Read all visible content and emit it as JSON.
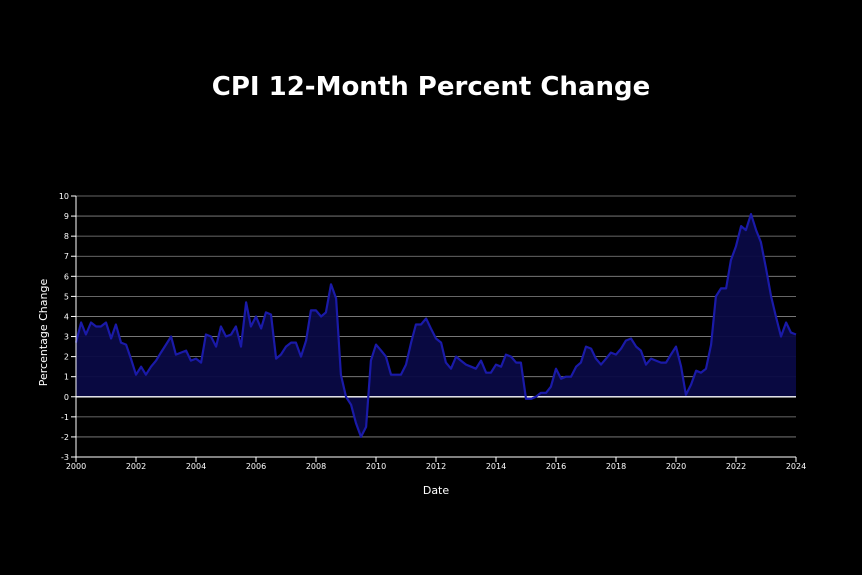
{
  "chart_data": {
    "type": "area",
    "title": "CPI 12-Month Percent Change",
    "xlabel": "Date",
    "ylabel": "Percentage Change",
    "xlim": [
      2000,
      2024
    ],
    "ylim": [
      -3,
      10
    ],
    "x_ticks": [
      "2000",
      "2002",
      "2004",
      "2006",
      "2008",
      "2010",
      "2012",
      "2014",
      "2016",
      "2018",
      "2020",
      "2022",
      "2024"
    ],
    "y_ticks": [
      "-3",
      "-2",
      "-1",
      "0",
      "1",
      "2",
      "3",
      "4",
      "5",
      "6",
      "7",
      "8",
      "9",
      "10"
    ],
    "grid": true,
    "colors": {
      "line": "#1a1aa8",
      "fill": "#0a0a45",
      "zero_line": "#ffffff",
      "grid": "#888888"
    },
    "x": [
      2000.0,
      2000.17,
      2000.33,
      2000.5,
      2000.67,
      2000.83,
      2001.0,
      2001.17,
      2001.33,
      2001.5,
      2001.67,
      2001.83,
      2002.0,
      2002.17,
      2002.33,
      2002.5,
      2002.67,
      2002.83,
      2003.0,
      2003.17,
      2003.33,
      2003.5,
      2003.67,
      2003.83,
      2004.0,
      2004.17,
      2004.33,
      2004.5,
      2004.67,
      2004.83,
      2005.0,
      2005.17,
      2005.33,
      2005.5,
      2005.67,
      2005.83,
      2006.0,
      2006.17,
      2006.33,
      2006.5,
      2006.67,
      2006.83,
      2007.0,
      2007.17,
      2007.33,
      2007.5,
      2007.67,
      2007.83,
      2008.0,
      2008.17,
      2008.33,
      2008.5,
      2008.67,
      2008.83,
      2009.0,
      2009.17,
      2009.33,
      2009.5,
      2009.67,
      2009.83,
      2010.0,
      2010.17,
      2010.33,
      2010.5,
      2010.67,
      2010.83,
      2011.0,
      2011.17,
      2011.33,
      2011.5,
      2011.67,
      2011.83,
      2012.0,
      2012.17,
      2012.33,
      2012.5,
      2012.67,
      2012.83,
      2013.0,
      2013.17,
      2013.33,
      2013.5,
      2013.67,
      2013.83,
      2014.0,
      2014.17,
      2014.33,
      2014.5,
      2014.67,
      2014.83,
      2015.0,
      2015.17,
      2015.33,
      2015.5,
      2015.67,
      2015.83,
      2016.0,
      2016.17,
      2016.33,
      2016.5,
      2016.67,
      2016.83,
      2017.0,
      2017.17,
      2017.33,
      2017.5,
      2017.67,
      2017.83,
      2018.0,
      2018.17,
      2018.33,
      2018.5,
      2018.67,
      2018.83,
      2019.0,
      2019.17,
      2019.33,
      2019.5,
      2019.67,
      2019.83,
      2020.0,
      2020.17,
      2020.33,
      2020.5,
      2020.67,
      2020.83,
      2021.0,
      2021.17,
      2021.33,
      2021.5,
      2021.67,
      2021.83,
      2022.0,
      2022.17,
      2022.33,
      2022.5,
      2022.67,
      2022.83,
      2023.0,
      2023.17,
      2023.33,
      2023.5,
      2023.67,
      2023.83,
      2024.0
    ],
    "y": [
      2.7,
      3.7,
      3.1,
      3.7,
      3.5,
      3.5,
      3.7,
      2.9,
      3.6,
      2.7,
      2.6,
      1.9,
      1.1,
      1.5,
      1.1,
      1.5,
      1.8,
      2.2,
      2.6,
      3.0,
      2.1,
      2.2,
      2.3,
      1.8,
      1.9,
      1.7,
      3.1,
      3.0,
      2.5,
      3.5,
      3.0,
      3.1,
      3.5,
      2.5,
      4.7,
      3.5,
      4.0,
      3.4,
      4.2,
      4.1,
      1.9,
      2.1,
      2.5,
      2.7,
      2.7,
      2.0,
      2.8,
      4.3,
      4.3,
      4.0,
      4.2,
      5.6,
      4.9,
      1.1,
      0.0,
      -0.4,
      -1.3,
      -2.0,
      -1.5,
      1.8,
      2.6,
      2.3,
      2.0,
      1.1,
      1.1,
      1.1,
      1.6,
      2.7,
      3.6,
      3.6,
      3.9,
      3.4,
      2.9,
      2.7,
      1.7,
      1.4,
      2.0,
      1.8,
      1.6,
      1.5,
      1.4,
      1.8,
      1.2,
      1.2,
      1.6,
      1.5,
      2.1,
      2.0,
      1.7,
      1.7,
      -0.1,
      -0.1,
      0.0,
      0.2,
      0.2,
      0.5,
      1.4,
      0.9,
      1.0,
      1.0,
      1.5,
      1.7,
      2.5,
      2.4,
      1.9,
      1.6,
      1.9,
      2.2,
      2.1,
      2.4,
      2.8,
      2.9,
      2.5,
      2.3,
      1.6,
      1.9,
      1.8,
      1.7,
      1.7,
      2.1,
      2.5,
      1.5,
      0.1,
      0.6,
      1.3,
      1.2,
      1.4,
      2.6,
      5.0,
      5.4,
      5.4,
      6.8,
      7.5,
      8.5,
      8.3,
      9.1,
      8.3,
      7.7,
      6.4,
      5.0,
      4.0,
      3.0,
      3.7,
      3.2,
      3.1
    ]
  }
}
